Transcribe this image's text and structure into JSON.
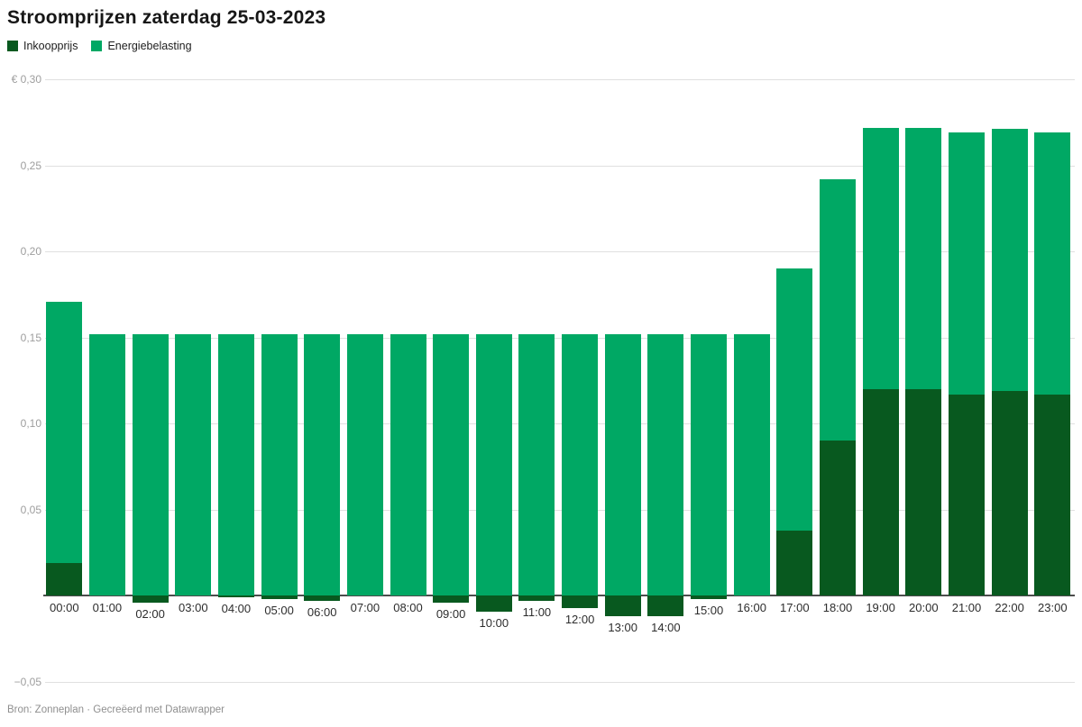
{
  "title": "Stroomprijzen zaterdag 25-03-2023",
  "legend": {
    "items": [
      {
        "label": "Inkoopprijs",
        "color": "#08591f"
      },
      {
        "label": "Energiebelasting",
        "color": "#00a864"
      }
    ]
  },
  "footer": "Bron: Zonneplan · Gecreëerd met Datawrapper",
  "chart_data": {
    "type": "bar",
    "stacked": true,
    "title": "Stroomprijzen zaterdag 25-03-2023",
    "unit": "€",
    "categories": [
      "00:00",
      "01:00",
      "02:00",
      "03:00",
      "04:00",
      "05:00",
      "06:00",
      "07:00",
      "08:00",
      "09:00",
      "10:00",
      "11:00",
      "12:00",
      "13:00",
      "14:00",
      "15:00",
      "16:00",
      "17:00",
      "18:00",
      "19:00",
      "20:00",
      "21:00",
      "22:00",
      "23:00"
    ],
    "series": [
      {
        "name": "Inkoopprijs",
        "color": "#08591f",
        "values": [
          0.019,
          0,
          -0.004,
          0,
          -0.001,
          -0.002,
          -0.003,
          0,
          0,
          -0.004,
          -0.009,
          -0.003,
          -0.007,
          -0.012,
          -0.012,
          -0.002,
          0,
          0.038,
          0.09,
          0.12,
          0.12,
          0.117,
          0.119,
          0.117
        ]
      },
      {
        "name": "Energiebelasting",
        "color": "#00a864",
        "values": [
          0.152,
          0.152,
          0.152,
          0.152,
          0.152,
          0.152,
          0.152,
          0.152,
          0.152,
          0.152,
          0.152,
          0.152,
          0.152,
          0.152,
          0.152,
          0.152,
          0.152,
          0.152,
          0.152,
          0.152,
          0.152,
          0.152,
          0.152,
          0.152
        ]
      }
    ],
    "yticks": [
      0.3,
      0.25,
      0.2,
      0.15,
      0.1,
      0.05,
      -0.05
    ],
    "ytick_labels": [
      "€ 0,30",
      "0,25",
      "0,20",
      "0,15",
      "0,10",
      "0,05",
      "−0,05"
    ],
    "ylim": [
      -0.05,
      0.3
    ],
    "grid": true,
    "legend_position": "top-left"
  }
}
